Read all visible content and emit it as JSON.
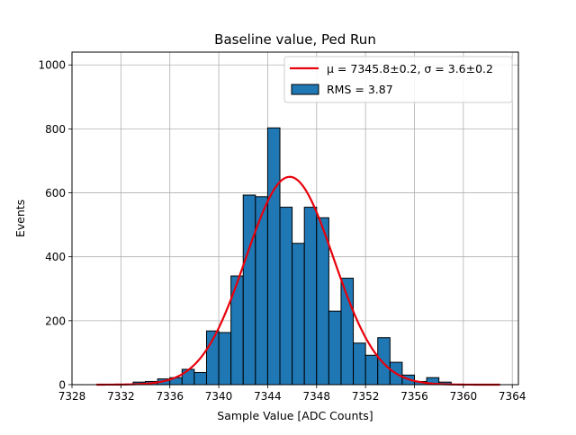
{
  "chart_data": {
    "type": "bar",
    "title": "Baseline value, Ped Run",
    "xlabel": "Sample Value [ADC Counts]",
    "ylabel": "Events",
    "xlim": [
      7328,
      7364.5
    ],
    "ylim": [
      0,
      1040
    ],
    "grid": true,
    "legend_position": "top-right",
    "colors": {
      "bars": "#1f77b4",
      "bar_edge": "#000000",
      "fit": "#e8000b"
    },
    "xticks": [
      7328,
      7332,
      7336,
      7340,
      7344,
      7348,
      7352,
      7356,
      7360,
      7364
    ],
    "yticks": [
      0,
      200,
      400,
      600,
      800,
      1000
    ],
    "bin_width": 1,
    "series": [
      {
        "kind": "histogram",
        "legend_label": "RMS = 3.87",
        "bin_starts": [
          7330,
          7331,
          7332,
          7333,
          7334,
          7335,
          7336,
          7337,
          7338,
          7339,
          7340,
          7341,
          7342,
          7343,
          7344,
          7345,
          7346,
          7347,
          7348,
          7349,
          7350,
          7351,
          7352,
          7353,
          7354,
          7355,
          7356,
          7357,
          7358,
          7359,
          7360,
          7361,
          7362
        ],
        "values": [
          0,
          0,
          0,
          8,
          10,
          18,
          22,
          48,
          38,
          168,
          163,
          340,
          593,
          588,
          803,
          555,
          442,
          555,
          522,
          230,
          333,
          130,
          92,
          147,
          70,
          30,
          10,
          22,
          8,
          0,
          0,
          0,
          0
        ]
      },
      {
        "kind": "gaussian_fit",
        "legend_label": "μ = 7345.8±0.2, σ = 3.6±0.2",
        "mu": 7345.8,
        "sigma": 3.6,
        "amplitude": 650,
        "x_range": [
          7330,
          7363
        ]
      }
    ]
  }
}
